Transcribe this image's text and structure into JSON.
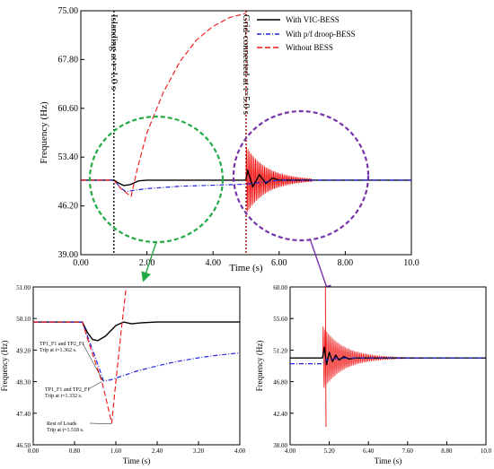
{
  "colors": {
    "vic": "#000000",
    "droop": "#2222dd",
    "none": "#ee1111",
    "green_circle": "#22aa44",
    "purple_circle": "#7733aa"
  },
  "chart_data": [
    {
      "id": "main",
      "type": "line",
      "xlabel": "Time (s)",
      "ylabel": "Frequency (Hz)",
      "xlim": [
        0,
        10
      ],
      "ylim": [
        39.0,
        75.0
      ],
      "xticks": [
        "0.00",
        "2.00",
        "4.00",
        "6.00",
        "8.00",
        "10.0"
      ],
      "yticks": [
        "39.00",
        "46.20",
        "53.40",
        "60.60",
        "67.80",
        "75.00"
      ],
      "legend": {
        "placement": "top-right",
        "entries": [
          "With VIC-BESS",
          "With p/f droop-BESS",
          "Without BESS"
        ]
      },
      "annotations": [
        {
          "text": "Islanding at t=1.0 s",
          "x": 1.0
        },
        {
          "text": "Grid-connected at t=5.0 s",
          "x": 5.0
        }
      ],
      "series": [
        {
          "name": "With VIC-BESS",
          "x": [
            0,
            1.0,
            1.15,
            1.3,
            1.5,
            1.75,
            2.0,
            3.0,
            4.0,
            4.99,
            5.05,
            5.2,
            5.4,
            5.6,
            5.8,
            6.0,
            6.5,
            10.0
          ],
          "y": [
            50.0,
            50.0,
            49.55,
            49.2,
            49.35,
            49.9,
            50.0,
            50.0,
            50.0,
            50.0,
            51.5,
            49.0,
            50.8,
            49.5,
            50.3,
            50.0,
            50.0,
            50.0
          ]
        },
        {
          "name": "With p/f droop-BESS",
          "x": [
            0,
            1.0,
            1.2,
            1.36,
            1.6,
            2.0,
            3.0,
            4.0,
            4.99,
            5.5,
            6.0,
            10.0
          ],
          "y": [
            50.0,
            50.0,
            48.9,
            48.3,
            48.5,
            48.75,
            49.1,
            49.25,
            49.4,
            49.7,
            50.0,
            50.0
          ]
        },
        {
          "name": "Without BESS",
          "x": [
            0,
            1.0,
            1.2,
            1.33,
            1.52,
            1.7,
            2.0,
            2.5,
            3.0,
            3.5,
            4.0,
            4.5,
            4.99
          ],
          "y": [
            50.0,
            50.0,
            48.8,
            48.3,
            47.6,
            51.5,
            57.0,
            63.0,
            67.5,
            70.7,
            72.7,
            74.0,
            74.6
          ]
        }
      ],
      "oscillation": {
        "name": "Without BESS",
        "start": 5.0,
        "end": 7.0,
        "center": 50.0,
        "initial_amplitude": 5.0,
        "frequency_hz": 22
      }
    },
    {
      "id": "zoom-left",
      "type": "line",
      "xlabel": "Time (s)",
      "ylabel": "Frequency (Hz)",
      "xlim": [
        0,
        4
      ],
      "ylim": [
        46.5,
        51.0
      ],
      "xticks": [
        "0.00",
        "0.80",
        "1.60",
        "2.40",
        "3.20",
        "4.00"
      ],
      "yticks": [
        "46.50",
        "47.40",
        "48.30",
        "49.20",
        "50.10",
        "51.00"
      ],
      "annotations": [
        {
          "text": "TP1_F1 and TP2_F1",
          "text2": "Trip at t=1.362 s.",
          "x": 1.36,
          "y": 48.3
        },
        {
          "text": "TP1_F1 and TP2_F1",
          "text2": "Trip at t=1.332 s.",
          "x": 1.33,
          "y": 48.3
        },
        {
          "text": "Rest of Loads",
          "text2": "Trip at t=1.518 s.",
          "x": 1.52,
          "y": 47.1
        }
      ],
      "series": [
        {
          "name": "With VIC-BESS",
          "x": [
            0,
            0.95,
            1.05,
            1.15,
            1.25,
            1.4,
            1.6,
            1.75,
            1.9,
            2.1,
            2.4,
            3.0,
            4.0
          ],
          "y": [
            50.0,
            50.0,
            49.7,
            49.5,
            49.47,
            49.6,
            49.9,
            50.0,
            49.95,
            49.98,
            50.0,
            50.0,
            50.0
          ]
        },
        {
          "name": "With p/f droop-BESS",
          "x": [
            0,
            0.95,
            1.1,
            1.25,
            1.36,
            1.5,
            1.7,
            2.0,
            2.4,
            2.8,
            3.2,
            3.6,
            4.0
          ],
          "y": [
            50.0,
            50.0,
            49.4,
            48.8,
            48.32,
            48.35,
            48.45,
            48.6,
            48.75,
            48.88,
            48.98,
            49.06,
            49.12
          ]
        },
        {
          "name": "Without BESS",
          "x": [
            0,
            0.95,
            1.1,
            1.33,
            1.52,
            1.6,
            1.7,
            1.8
          ],
          "y": [
            50.0,
            50.0,
            49.3,
            48.3,
            47.12,
            48.3,
            49.7,
            51.0
          ]
        }
      ]
    },
    {
      "id": "zoom-right",
      "type": "line",
      "xlabel": "Time (s)",
      "ylabel": "Frequency (Hz)",
      "xlim": [
        4.0,
        10.0
      ],
      "ylim": [
        38.0,
        60.0
      ],
      "xticks": [
        "4.00",
        "5.20",
        "6.40",
        "7.60",
        "8.80",
        "10.0"
      ],
      "yticks": [
        "38.00",
        "42.40",
        "46.80",
        "51.20",
        "55.60",
        "60.00"
      ],
      "series": [
        {
          "name": "With VIC-BESS",
          "x": [
            4.0,
            4.99,
            5.05,
            5.12,
            5.2,
            5.3,
            5.4,
            5.5,
            5.65,
            5.8,
            6.0,
            6.5,
            10.0
          ],
          "y": [
            50.1,
            50.1,
            51.6,
            49.2,
            50.9,
            49.6,
            50.5,
            49.8,
            50.3,
            49.95,
            50.1,
            50.1,
            50.1
          ]
        },
        {
          "name": "With p/f droop-BESS",
          "x": [
            4.0,
            4.99,
            5.1,
            5.3,
            5.6,
            6.0,
            10.0
          ],
          "y": [
            49.3,
            49.3,
            49.8,
            50.0,
            50.05,
            50.1,
            50.1
          ]
        }
      ],
      "oscillation": {
        "name": "Without BESS",
        "start": 5.0,
        "end": 8.2,
        "center": 50.1,
        "initial_amplitude": 4.5,
        "frequency_hz": 18,
        "spike_top": 60.0,
        "spike_bottom": 40.5
      }
    }
  ]
}
